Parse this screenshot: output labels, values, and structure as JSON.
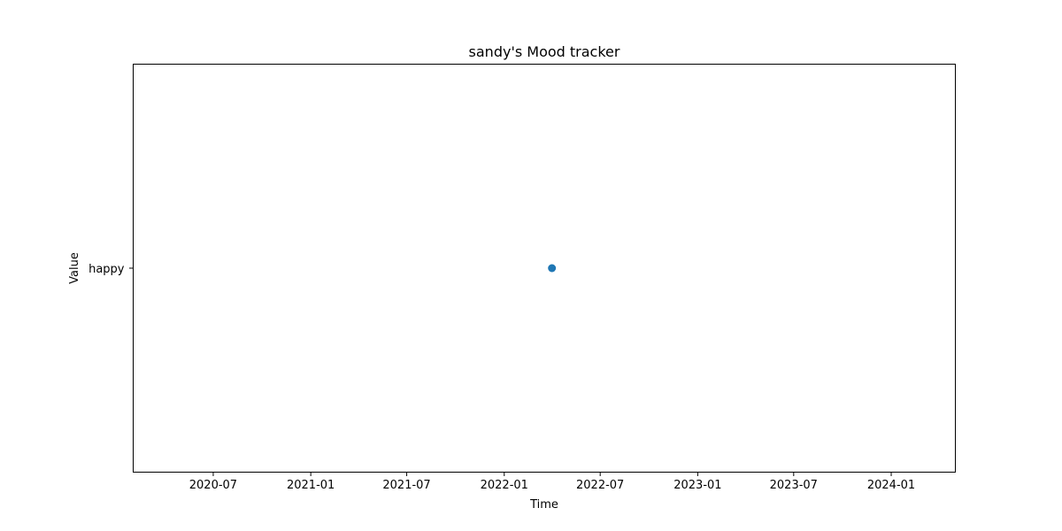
{
  "chart_data": {
    "type": "scatter",
    "title": "sandy's Mood tracker",
    "xlabel": "Time",
    "ylabel": "Value",
    "x_axis": {
      "type": "date",
      "range": [
        "2020-02-01",
        "2024-05-01"
      ],
      "ticks": [
        "2020-07-01",
        "2021-01-01",
        "2021-07-01",
        "2022-01-01",
        "2022-07-01",
        "2023-01-01",
        "2023-07-01",
        "2024-01-01"
      ],
      "tick_labels": [
        "2020-07",
        "2021-01",
        "2021-07",
        "2022-01",
        "2022-07",
        "2023-01",
        "2023-07",
        "2024-01"
      ]
    },
    "y_axis": {
      "type": "category",
      "categories": [
        "happy"
      ]
    },
    "series": [
      {
        "color": "#1f77b4",
        "points": [
          {
            "x": "2022-04-01",
            "y": "happy"
          }
        ]
      }
    ],
    "grid": false,
    "legend": "none"
  }
}
